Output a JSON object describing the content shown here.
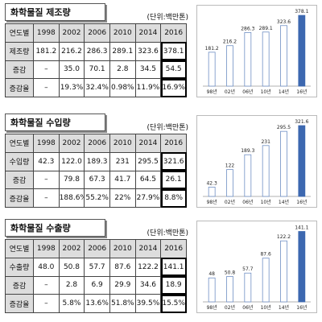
{
  "chart_data": [
    {
      "type": "table",
      "title": "화학물질 제조량",
      "unit": "(단위:백만톤)",
      "columns": [
        "연도별",
        "1998",
        "2002",
        "2006",
        "2010",
        "2014",
        "2016"
      ],
      "rows": [
        [
          "제조량",
          "181.2",
          "216.2",
          "286.3",
          "289.1",
          "323.6",
          "378.1"
        ],
        [
          "증감",
          "–",
          "35.0",
          "70.1",
          "2.8",
          "34.5",
          "54.5"
        ],
        [
          "증감율",
          "–",
          "19.3%",
          "32.4%",
          "0.98%",
          "11.9%",
          "16.9%"
        ]
      ]
    },
    {
      "type": "bar",
      "categories": [
        "98년",
        "02년",
        "06년",
        "10년",
        "14년",
        "16년"
      ],
      "values": [
        181.2,
        216.2,
        286.3,
        289.1,
        323.6,
        378.1
      ],
      "data_labels": [
        "181.2",
        "216.2",
        "286.3",
        "289.1",
        "323.6",
        "378.1"
      ],
      "ylim": [
        0,
        400
      ]
    },
    {
      "type": "table",
      "title": "화학물질 수입량",
      "unit": "(단위:백만톤)",
      "columns": [
        "연도별",
        "1998",
        "2002",
        "2006",
        "2010",
        "2014",
        "2016"
      ],
      "rows": [
        [
          "수입량",
          "42.3",
          "122.0",
          "189.3",
          "231",
          "295.5",
          "321.6"
        ],
        [
          "증감",
          "–",
          "79.8",
          "67.3",
          "41.7",
          "64.5",
          "26.1"
        ],
        [
          "증감율",
          "–",
          "188.6%",
          "55.2%",
          "22%",
          "27.9%",
          "8.8%"
        ]
      ]
    },
    {
      "type": "bar",
      "categories": [
        "98년",
        "02년",
        "06년",
        "10년",
        "14년",
        "16년"
      ],
      "values": [
        42.3,
        122,
        189.3,
        231,
        295.5,
        321.6
      ],
      "data_labels": [
        "42.3",
        "122",
        "189.3",
        "231",
        "295.5",
        "321.6"
      ],
      "ylim": [
        0,
        340
      ]
    },
    {
      "type": "table",
      "title": "화학물질 수출량",
      "unit": "(단위:백만톤)",
      "columns": [
        "연도별",
        "1998",
        "2002",
        "2006",
        "2010",
        "2014",
        "2016"
      ],
      "rows": [
        [
          "수출량",
          "48.0",
          "50.8",
          "57.7",
          "87.6",
          "122.2",
          "141.1"
        ],
        [
          "증감",
          "–",
          "2.8",
          "6.9",
          "29.9",
          "34.6",
          "18.9"
        ],
        [
          "증감율",
          "–",
          "5.8%",
          "13.6%",
          "51.8%",
          "39.5%",
          "15.5%"
        ]
      ]
    },
    {
      "type": "bar",
      "categories": [
        "98년",
        "02년",
        "06년",
        "10년",
        "14년",
        "16년"
      ],
      "values": [
        48,
        50.8,
        57.7,
        87.6,
        122.2,
        141.1
      ],
      "data_labels": [
        "48",
        "50.8",
        "57.7",
        "87.6",
        "122.2",
        "141.1"
      ],
      "ylim": [
        0,
        150
      ]
    }
  ],
  "colors": {
    "bar_fill": "#ffffff",
    "bar_stroke": "#6f8fc4",
    "highlight_bar": "#3d68b0",
    "header_bg": "#dddddd"
  }
}
